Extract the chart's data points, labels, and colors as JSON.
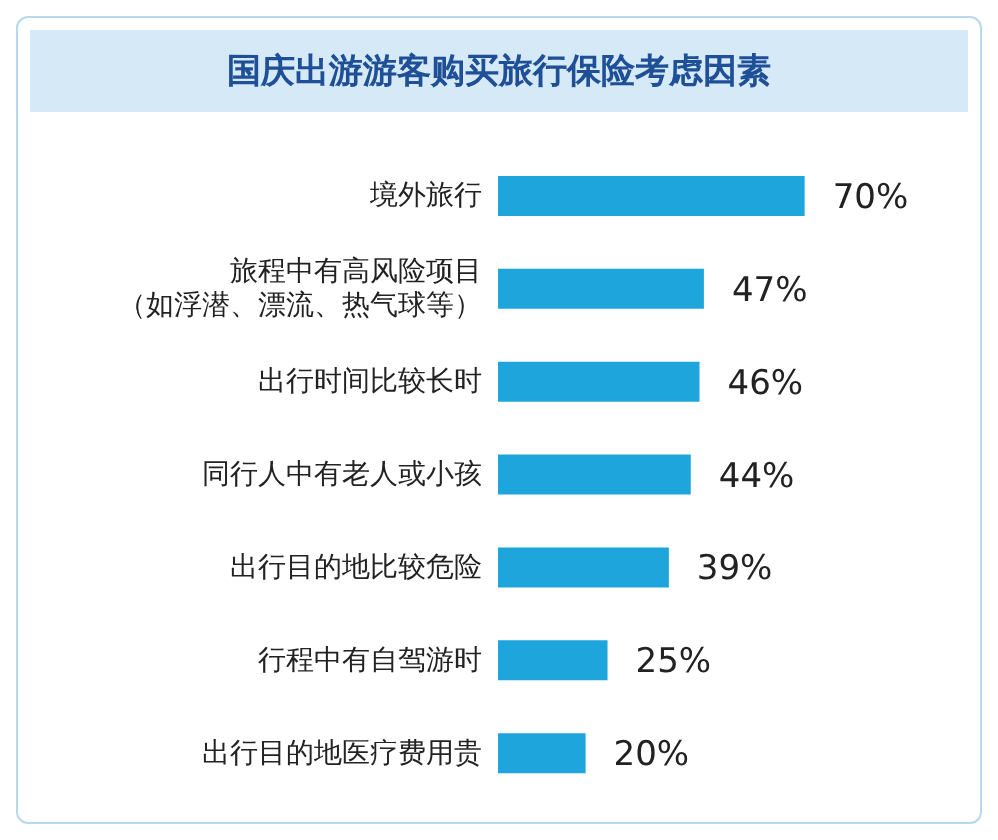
{
  "chart_data": {
    "type": "bar",
    "orientation": "horizontal",
    "title": "国庆出游游客购买旅行保险考虑因素",
    "categories": [
      "境外旅行",
      "旅程中有高风险项目（如浮潜、漂流、热气球等）",
      "出行时间比较长时",
      "同行人中有老人或小孩",
      "出行目的地比较危险",
      "行程中有自驾游时",
      "出行目的地医疗费用贵"
    ],
    "values": [
      70,
      47,
      46,
      44,
      39,
      25,
      20
    ],
    "value_labels": [
      "70%",
      "47%",
      "46%",
      "44%",
      "39%",
      "25%",
      "20%"
    ],
    "color": "#1ea6dc"
  }
}
